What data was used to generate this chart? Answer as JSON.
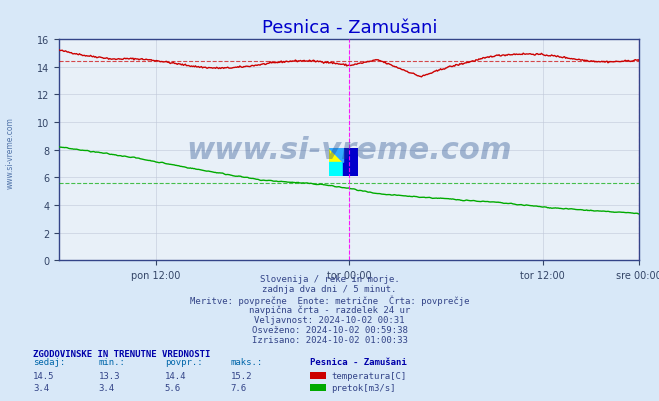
{
  "title": "Pesnica - Zamušani",
  "title_color": "#0000cc",
  "bg_color": "#d8e8f8",
  "plot_bg_color": "#e8f0f8",
  "grid_color": "#c0c8d8",
  "watermark": "www.si-vreme.com",
  "subtitle_lines": [
    "Slovenija / reke in morje.",
    "zadnja dva dni / 5 minut.",
    "Meritve: povprečne  Enote: metrične  Črta: povprečje",
    "navpična črta - razdelek 24 ur",
    "Veljavnost: 2024-10-02 00:31",
    "Osveženo: 2024-10-02 00:59:38",
    "Izrisano: 2024-10-02 01:00:33"
  ],
  "xlabel_ticks": [
    "pon 12:00",
    "tor 00:00",
    "tor 12:00",
    "sre 00:00"
  ],
  "xlabel_tick_positions": [
    0.1667,
    0.5,
    0.8333,
    1.0
  ],
  "ymin": 0,
  "ymax": 16,
  "yticks": [
    0,
    2,
    4,
    6,
    8,
    10,
    12,
    14,
    16
  ],
  "temp_avg_line": 14.4,
  "flow_avg_line": 5.6,
  "temp_color": "#cc0000",
  "flow_color": "#00aa00",
  "vertical_line_color": "#ff00ff",
  "stats_header": "ZGODOVINSKE IN TRENUTNE VREDNOSTI",
  "stats_labels": [
    "sedaj:",
    "min.:",
    "povpr.:",
    "maks.:"
  ],
  "stats_temp": [
    14.5,
    13.3,
    14.4,
    15.2
  ],
  "stats_flow": [
    3.4,
    3.4,
    5.6,
    7.6
  ],
  "station_label": "Pesnica - Zamušani",
  "legend_temp": "temperatura[C]",
  "legend_flow": "pretok[m3/s]",
  "n_points": 576
}
